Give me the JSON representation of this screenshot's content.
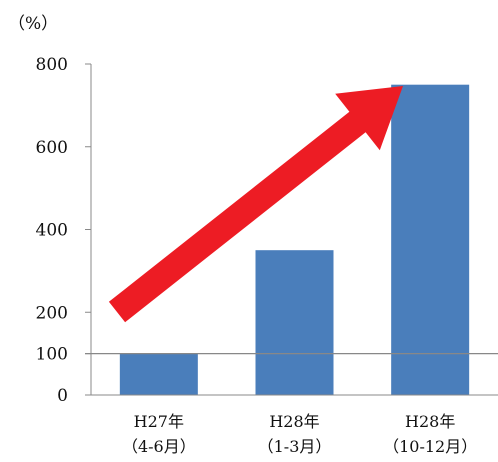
{
  "chart_data": {
    "type": "bar",
    "y_unit": "（%）",
    "categories": [
      {
        "line1": "H27年",
        "line2": "（4-6月）"
      },
      {
        "line1": "H28年",
        "line2": "（1-3月）"
      },
      {
        "line1": "H28年",
        "line2": "（10-12月）"
      }
    ],
    "values": [
      100,
      350,
      750
    ],
    "ylim": [
      0,
      800
    ],
    "yticks": [
      "0",
      "100",
      "200",
      "400",
      "600",
      "800"
    ],
    "reference_line": 100,
    "grid": false,
    "colors": {
      "bar": "#4a7ebb",
      "arrow": "#ed1c24",
      "axis": "#888888",
      "reference_line": "#888888"
    },
    "annotation": "red-upward-trend-arrow"
  }
}
